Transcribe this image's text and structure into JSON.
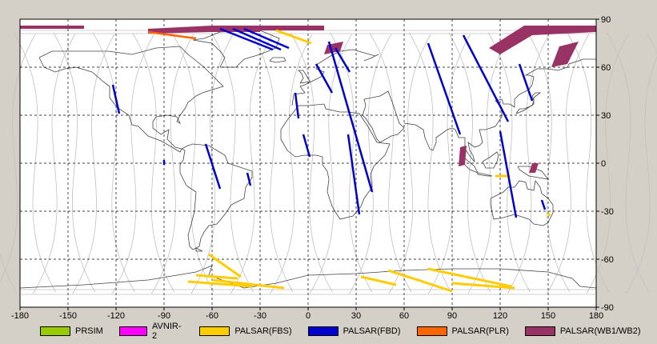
{
  "map": {
    "x_ticks": [
      "-180",
      "-150",
      "-120",
      "-90",
      "-60",
      "-30",
      "0",
      "30",
      "60",
      "90",
      "120",
      "150",
      "180"
    ],
    "y_ticks": [
      "90",
      "60",
      "30",
      "0",
      "-30",
      "-60",
      "-90"
    ],
    "x_range": [
      -180,
      180
    ],
    "y_range": [
      -90,
      90
    ],
    "grid": true,
    "colors": {
      "background": "#ffffff",
      "frame": "#000000",
      "grid": "#000000",
      "coastline": "#444444",
      "orbit_tracks": "#c0c0c0"
    }
  },
  "legend": {
    "items": [
      {
        "label": "PRSIM",
        "color": "#99cc00"
      },
      {
        "label": "AVNIR-2",
        "color": "#ff00ff"
      },
      {
        "label": "PALSAR(FBS)",
        "color": "#ffcc00"
      },
      {
        "label": "PALSAR(FBD)",
        "color": "#0000cc"
      },
      {
        "label": "PALSAR(PLR)",
        "color": "#ff6600"
      },
      {
        "label": "PALSAR(WB1/WB2)",
        "color": "#993366"
      }
    ]
  },
  "observations": {
    "FBD": [
      [
        [
          -122,
          49
        ],
        [
          -118,
          31
        ]
      ],
      [
        [
          -90,
          2
        ],
        [
          -90,
          -1
        ]
      ],
      [
        [
          -64,
          12
        ],
        [
          -55,
          -16
        ]
      ],
      [
        [
          -38,
          -6
        ],
        [
          -36,
          -14
        ]
      ],
      [
        [
          -47,
          84
        ],
        [
          -17,
          71
        ]
      ],
      [
        [
          -55,
          84
        ],
        [
          -22,
          71
        ]
      ],
      [
        [
          -40,
          84
        ],
        [
          -12,
          72
        ]
      ],
      [
        [
          -8,
          44
        ],
        [
          -6,
          28
        ]
      ],
      [
        [
          -3,
          18
        ],
        [
          1,
          4
        ]
      ],
      [
        [
          13,
          76
        ],
        [
          40,
          -18
        ]
      ],
      [
        [
          5,
          62
        ],
        [
          15,
          44
        ]
      ],
      [
        [
          17,
          72
        ],
        [
          26,
          57
        ]
      ],
      [
        [
          25,
          18
        ],
        [
          32,
          -32
        ]
      ],
      [
        [
          75,
          75
        ],
        [
          95,
          18
        ]
      ],
      [
        [
          97,
          80
        ],
        [
          125,
          26
        ]
      ],
      [
        [
          120,
          20
        ],
        [
          130,
          -34
        ]
      ],
      [
        [
          132,
          62
        ],
        [
          140,
          39
        ]
      ],
      [
        [
          146,
          -23
        ],
        [
          148,
          -29
        ]
      ]
    ],
    "FBS": [
      [
        [
          -20,
          83
        ],
        [
          2,
          75
        ]
      ],
      [
        [
          -62,
          -57
        ],
        [
          -42,
          -71
        ]
      ],
      [
        [
          -70,
          -70
        ],
        [
          -44,
          -72
        ]
      ],
      [
        [
          -60,
          -73
        ],
        [
          -15,
          -78
        ]
      ],
      [
        [
          -75,
          -74
        ],
        [
          -35,
          -77
        ]
      ],
      [
        [
          33,
          -71
        ],
        [
          55,
          -76
        ]
      ],
      [
        [
          50,
          -67
        ],
        [
          90,
          -80
        ]
      ],
      [
        [
          75,
          -66
        ],
        [
          127,
          -77
        ]
      ],
      [
        [
          90,
          -75
        ],
        [
          129,
          -78
        ]
      ],
      [
        [
          117,
          -8
        ],
        [
          126,
          -8
        ]
      ],
      [
        [
          150,
          -31
        ],
        [
          151,
          -33
        ]
      ]
    ],
    "PLR": [
      [
        [
          -100,
          82
        ],
        [
          -70,
          78
        ]
      ]
    ],
    "WB": [
      [
        [
          -180,
          86
        ],
        [
          -140,
          86
        ],
        [
          -140,
          84
        ],
        [
          -180,
          84
        ]
      ],
      [
        [
          -100,
          84
        ],
        [
          -60,
          86
        ],
        [
          -30,
          86
        ],
        [
          -30,
          82
        ],
        [
          -60,
          82
        ],
        [
          -100,
          81
        ]
      ],
      [
        [
          -30,
          86
        ],
        [
          10,
          86
        ],
        [
          10,
          83
        ],
        [
          -30,
          83
        ]
      ],
      [
        [
          12,
          74
        ],
        [
          22,
          76
        ],
        [
          20,
          70
        ],
        [
          10,
          68
        ]
      ],
      [
        [
          95,
          10
        ],
        [
          99,
          11
        ],
        [
          98,
          -1
        ],
        [
          94,
          -2
        ]
      ],
      [
        [
          140,
          0
        ],
        [
          144,
          0
        ],
        [
          142,
          -6
        ],
        [
          138,
          -6
        ]
      ],
      [
        [
          113,
          72
        ],
        [
          135,
          86
        ],
        [
          180,
          86
        ],
        [
          180,
          82
        ],
        [
          140,
          80
        ],
        [
          120,
          68
        ]
      ],
      [
        [
          157,
          73
        ],
        [
          169,
          76
        ],
        [
          162,
          62
        ],
        [
          152,
          60
        ]
      ]
    ]
  }
}
